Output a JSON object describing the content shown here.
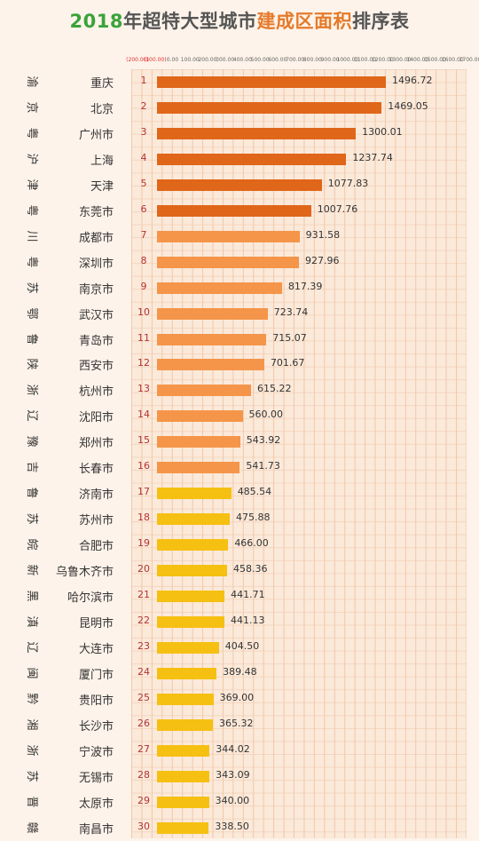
{
  "title": {
    "part1": "2018",
    "part2": "年超特大型城市",
    "part3": "建成区面积",
    "part4": "排序表"
  },
  "colors": {
    "tier1": "#e0661a",
    "tier2": "#f4954a",
    "tier3": "#f6c012",
    "rank": "#b43232",
    "title_green": "#3aa33a",
    "title_orange": "#e57a2a"
  },
  "chart_data": {
    "type": "bar",
    "orientation": "horizontal",
    "title": "2018年超特大型城市建成区面积排序表",
    "xlim": [
      -200,
      1700
    ],
    "grid": true,
    "tick_labels": [
      "(200.00)",
      "(100.00)",
      "0.00",
      "100.00",
      "200.00",
      "300.00",
      "400.00",
      "500.00",
      "600.00",
      "700.00",
      "800.00",
      "900.00",
      "1000.00",
      "1100.00",
      "1200.00",
      "1300.00",
      "1400.00",
      "1500.00",
      "1600.00",
      "1700.00"
    ],
    "rows": [
      {
        "abbr": "渝",
        "city": "重庆",
        "rank": "1",
        "value": 1496.72,
        "label": "1496.72"
      },
      {
        "abbr": "京",
        "city": "北京",
        "rank": "2",
        "value": 1469.05,
        "label": "1469.05"
      },
      {
        "abbr": "粤",
        "city": "广州市",
        "rank": "3",
        "value": 1300.01,
        "label": "1300.01"
      },
      {
        "abbr": "沪",
        "city": "上海",
        "rank": "4",
        "value": 1237.74,
        "label": "1237.74"
      },
      {
        "abbr": "津",
        "city": "天津",
        "rank": "5",
        "value": 1077.83,
        "label": "1077.83"
      },
      {
        "abbr": "粤",
        "city": "东莞市",
        "rank": "6",
        "value": 1007.76,
        "label": "1007.76"
      },
      {
        "abbr": "川",
        "city": "成都市",
        "rank": "7",
        "value": 931.58,
        "label": "931.58"
      },
      {
        "abbr": "粤",
        "city": "深圳市",
        "rank": "8",
        "value": 927.96,
        "label": "927.96"
      },
      {
        "abbr": "苏",
        "city": "南京市",
        "rank": "9",
        "value": 817.39,
        "label": "817.39"
      },
      {
        "abbr": "鄂",
        "city": "武汉市",
        "rank": "10",
        "value": 723.74,
        "label": "723.74"
      },
      {
        "abbr": "鲁",
        "city": "青岛市",
        "rank": "11",
        "value": 715.07,
        "label": "715.07"
      },
      {
        "abbr": "陕",
        "city": "西安市",
        "rank": "12",
        "value": 701.67,
        "label": "701.67"
      },
      {
        "abbr": "浙",
        "city": "杭州市",
        "rank": "13",
        "value": 615.22,
        "label": "615.22"
      },
      {
        "abbr": "辽",
        "city": "沈阳市",
        "rank": "14",
        "value": 560.0,
        "label": "560.00"
      },
      {
        "abbr": "豫",
        "city": "郑州市",
        "rank": "15",
        "value": 543.92,
        "label": "543.92"
      },
      {
        "abbr": "吉",
        "city": "长春市",
        "rank": "16",
        "value": 541.73,
        "label": "541.73"
      },
      {
        "abbr": "鲁",
        "city": "济南市",
        "rank": "17",
        "value": 485.54,
        "label": "485.54"
      },
      {
        "abbr": "苏",
        "city": "苏州市",
        "rank": "18",
        "value": 475.88,
        "label": "475.88"
      },
      {
        "abbr": "皖",
        "city": "合肥市",
        "rank": "19",
        "value": 466.0,
        "label": "466.00"
      },
      {
        "abbr": "新",
        "city": "乌鲁木齐市",
        "rank": "20",
        "value": 458.36,
        "label": "458.36"
      },
      {
        "abbr": "黑",
        "city": "哈尔滨市",
        "rank": "21",
        "value": 441.71,
        "label": "441.71"
      },
      {
        "abbr": "滇",
        "city": "昆明市",
        "rank": "22",
        "value": 441.13,
        "label": "441.13"
      },
      {
        "abbr": "辽",
        "city": "大连市",
        "rank": "23",
        "value": 404.5,
        "label": "404.50"
      },
      {
        "abbr": "闽",
        "city": "厦门市",
        "rank": "24",
        "value": 389.48,
        "label": "389.48"
      },
      {
        "abbr": "黔",
        "city": "贵阳市",
        "rank": "25",
        "value": 369.0,
        "label": "369.00"
      },
      {
        "abbr": "湘",
        "city": "长沙市",
        "rank": "26",
        "value": 365.32,
        "label": "365.32"
      },
      {
        "abbr": "浙",
        "city": "宁波市",
        "rank": "27",
        "value": 344.02,
        "label": "344.02"
      },
      {
        "abbr": "苏",
        "city": "无锡市",
        "rank": "28",
        "value": 343.09,
        "label": "343.09"
      },
      {
        "abbr": "晋",
        "city": "太原市",
        "rank": "29",
        "value": 340.0,
        "label": "340.00"
      },
      {
        "abbr": "赣",
        "city": "南昌市",
        "rank": "30",
        "value": 338.5,
        "label": "338.50"
      }
    ]
  }
}
